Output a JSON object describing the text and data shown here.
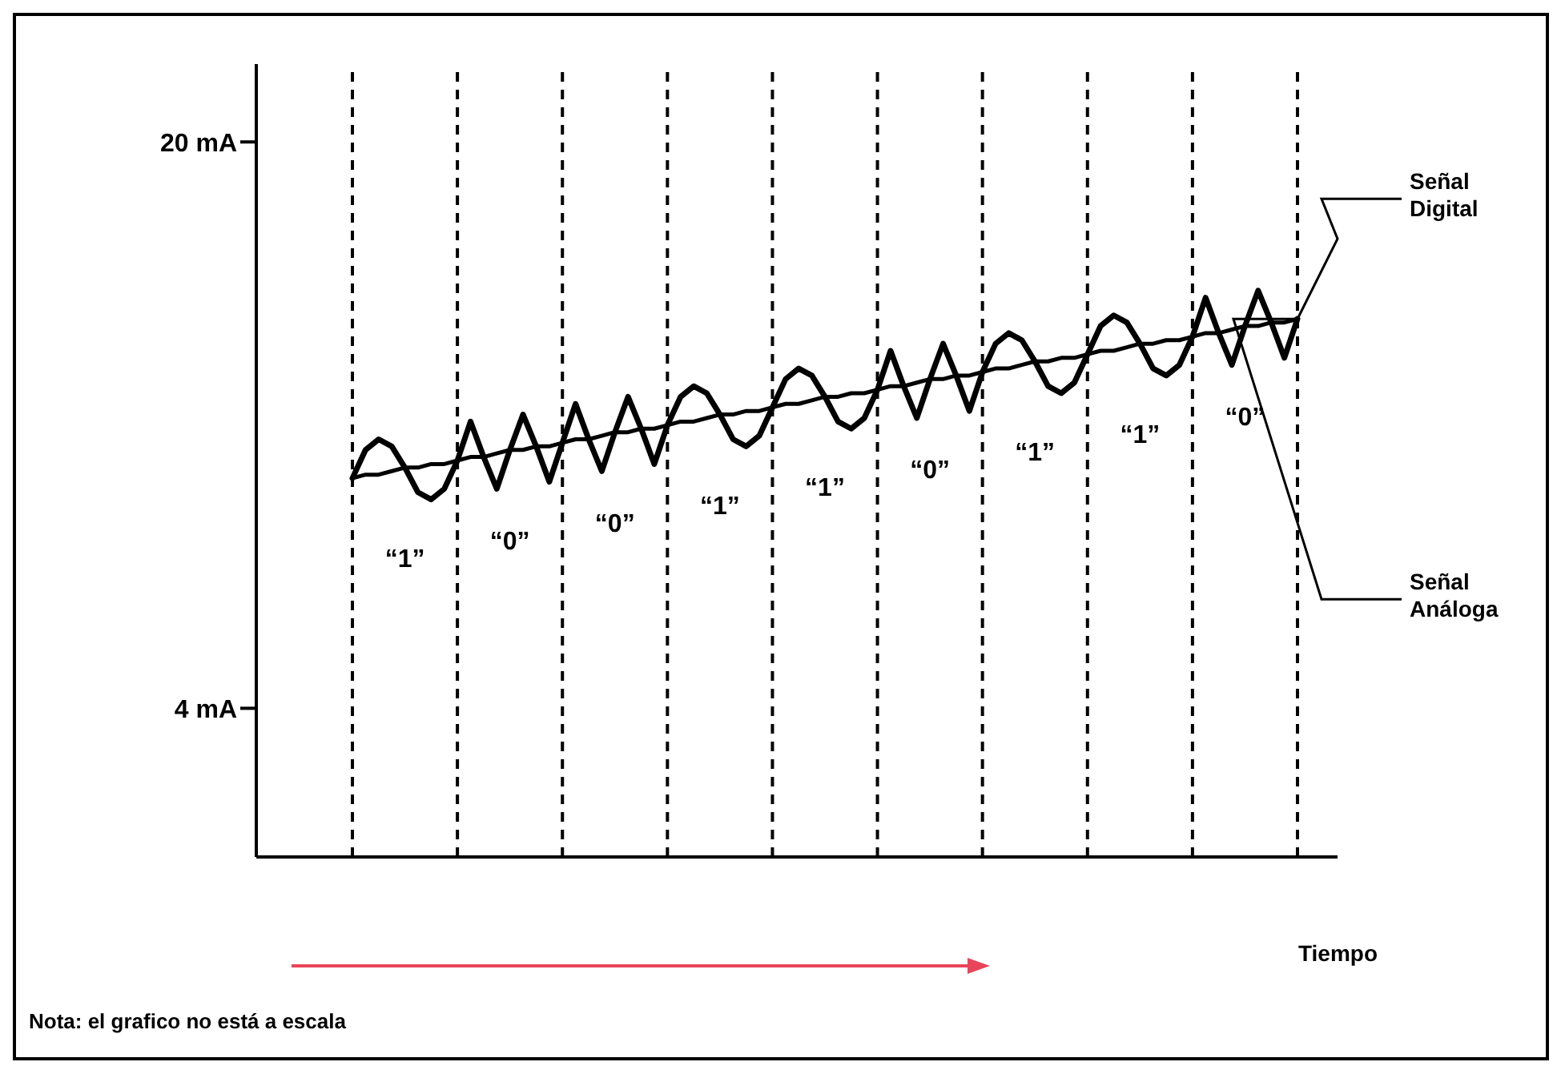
{
  "chart_data": {
    "type": "line",
    "xlabel": "Tiempo",
    "categories": [
      null,
      null,
      null,
      null,
      null,
      null,
      null,
      null,
      null,
      null,
      null,
      null,
      null,
      null,
      null,
      null,
      null,
      null,
      null,
      null,
      null,
      null,
      null,
      null,
      null,
      null,
      null,
      null,
      null,
      null,
      null,
      null,
      null,
      null,
      null,
      null,
      null,
      null,
      null,
      null,
      null,
      null,
      null,
      null,
      null,
      null,
      null,
      null,
      null,
      null,
      null,
      null,
      null,
      null,
      null,
      null,
      null,
      null,
      null,
      null,
      null,
      null,
      null,
      null,
      null,
      null,
      null,
      null,
      null,
      null,
      null,
      null,
      null
    ],
    "grid": "x",
    "ylim": [
      -0.2,
      22.2
    ],
    "yticks": [
      {
        "value": 20,
        "label": "20 mA"
      },
      {
        "value": 4,
        "label": "4 mA"
      }
    ],
    "tick_labels": "y",
    "marker": "none",
    "line_style": "solid",
    "series": [
      {
        "name": "Señal Digital",
        "color": "#000000",
        "values": [
          10.5,
          11.3,
          11.6,
          11.4,
          10.8,
          10.1,
          9.9,
          10.2,
          11.0,
          12.1,
          11.1,
          10.2,
          11.3,
          12.3,
          11.4,
          10.4,
          11.5,
          12.6,
          11.6,
          10.7,
          11.8,
          12.8,
          11.9,
          10.9,
          12.0,
          12.8,
          13.1,
          12.9,
          12.3,
          11.6,
          11.4,
          11.7,
          12.5,
          13.3,
          13.6,
          13.4,
          12.8,
          12.1,
          11.9,
          12.2,
          13.0,
          14.1,
          13.1,
          12.2,
          13.3,
          14.3,
          13.4,
          12.4,
          13.5,
          14.3,
          14.6,
          14.4,
          13.8,
          13.1,
          12.9,
          13.2,
          14.0,
          14.8,
          15.1,
          14.9,
          14.3,
          13.6,
          13.4,
          13.7,
          14.5,
          15.6,
          14.6,
          13.7,
          14.8,
          15.8,
          14.9,
          13.9,
          15.0
        ]
      },
      {
        "name": "Señal Análoga",
        "color": "#000000",
        "values": [
          10.5,
          10.6,
          10.6,
          10.7,
          10.8,
          10.8,
          10.9,
          10.9,
          11.0,
          11.1,
          11.1,
          11.2,
          11.3,
          11.3,
          11.4,
          11.4,
          11.5,
          11.6,
          11.6,
          11.7,
          11.8,
          11.8,
          11.9,
          11.9,
          12.0,
          12.1,
          12.1,
          12.2,
          12.3,
          12.3,
          12.4,
          12.4,
          12.5,
          12.6,
          12.6,
          12.7,
          12.8,
          12.8,
          12.9,
          12.9,
          13.0,
          13.1,
          13.1,
          13.2,
          13.3,
          13.3,
          13.4,
          13.4,
          13.5,
          13.6,
          13.6,
          13.7,
          13.8,
          13.8,
          13.9,
          13.9,
          14.0,
          14.1,
          14.1,
          14.2,
          14.3,
          14.3,
          14.4,
          14.4,
          14.5,
          14.6,
          14.6,
          14.7,
          14.8,
          14.8,
          14.9,
          14.9,
          15.0
        ]
      }
    ],
    "annotations": [
      "“1”",
      "“0”",
      "“0”",
      "“1”",
      "“1”",
      "“0”",
      "“1”",
      "“1”",
      "“0”",
      "Nota: el grafico no está a escala"
    ]
  }
}
